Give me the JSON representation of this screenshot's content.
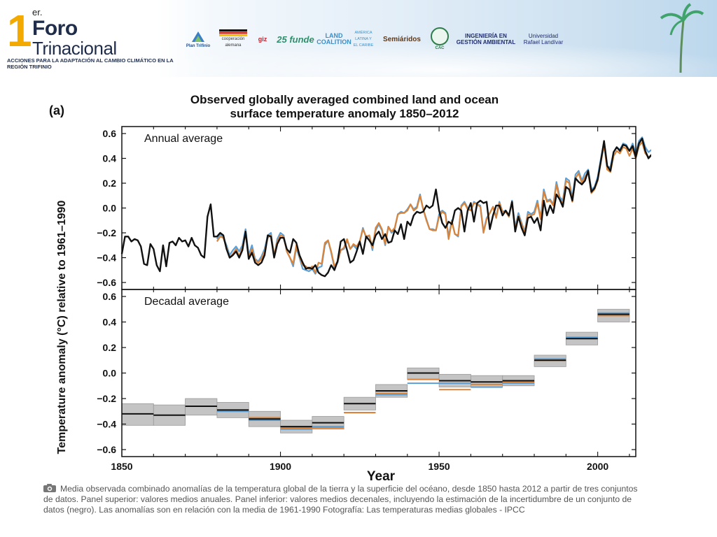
{
  "header": {
    "event_number": "1",
    "event_superscript": "er.",
    "event_line1": "Foro",
    "event_line2": "Trinacional",
    "event_subtitle": "ACCIONES PARA LA ADAPTACIÓN AL CAMBIO CLIMÁTICO EN LA REGIÓN TRIFINIO",
    "partners": [
      {
        "text": "Plan Trifinio",
        "icon": "plan-trifinio-logo"
      },
      {
        "text": "cooperación alemana",
        "icon": "cooperacion-alemana-logo"
      },
      {
        "text": "giz",
        "icon": "giz-logo"
      },
      {
        "text": "25 funde",
        "icon": "funde-logo"
      },
      {
        "text": "LAND COALITION",
        "icon": "land-coalition-logo"
      },
      {
        "text": "AMÉRICA LATINA Y EL CARIBE",
        "icon": "land-coalition-region-logo"
      },
      {
        "text": "Semiáridos",
        "icon": "semiaridos-logo"
      },
      {
        "text": "CAC",
        "icon": "cac-logo"
      },
      {
        "text": "INGENIERÍA EN GESTIÓN AMBIENTAL",
        "icon": "ingenieria-gestion-ambiental-logo"
      },
      {
        "text": "Universidad Rafael Landívar",
        "icon": "universidad-rafael-landivar-logo"
      }
    ]
  },
  "colors": {
    "black_series": "#111111",
    "orange_series": "#d9843a",
    "blue_series": "#5b9fd6",
    "uncertainty_band": "#c4c4c4",
    "event_accent": "#f2a900"
  },
  "chart_data": {
    "type": "line",
    "panel_tag": "(a)",
    "title": "Observed globally averaged combined land and ocean surface temperature anomaly 1850–2012",
    "title_line1": "Observed globally averaged combined land and ocean",
    "title_line2": "surface temperature anomaly 1850–2012",
    "ylabel": "Temperature anomaly (°C) relative to 1961–1990",
    "xlabel": "Year",
    "xlim": [
      1850,
      2012
    ],
    "x_ticks": [
      1850,
      1900,
      1950,
      2000
    ],
    "x_tick_labels": [
      "1850",
      "1900",
      "1950",
      "2000"
    ],
    "grid": false,
    "panels": [
      {
        "label": "Annual average",
        "ylim": [
          -0.6,
          0.6
        ],
        "y_ticks": [
          0.6,
          0.4,
          0.2,
          0.0,
          -0.2,
          -0.4,
          -0.6
        ],
        "y_tick_labels": [
          "0.6",
          "0.4",
          "0.2",
          "0.0",
          "−0.2",
          "−0.4",
          "−0.6"
        ],
        "series": [
          {
            "color": "#111111",
            "x_start": 1850,
            "values": [
              -0.37,
              -0.23,
              -0.23,
              -0.27,
              -0.25,
              -0.26,
              -0.31,
              -0.45,
              -0.46,
              -0.29,
              -0.33,
              -0.46,
              -0.51,
              -0.3,
              -0.47,
              -0.28,
              -0.27,
              -0.3,
              -0.24,
              -0.27,
              -0.26,
              -0.31,
              -0.24,
              -0.3,
              -0.32,
              -0.38,
              -0.4,
              -0.07,
              0.03,
              -0.23,
              -0.23,
              -0.2,
              -0.22,
              -0.33,
              -0.4,
              -0.38,
              -0.35,
              -0.4,
              -0.34,
              -0.19,
              -0.41,
              -0.36,
              -0.44,
              -0.46,
              -0.44,
              -0.38,
              -0.22,
              -0.23,
              -0.4,
              -0.29,
              -0.24,
              -0.24,
              -0.33,
              -0.36,
              -0.25,
              -0.28,
              -0.38,
              -0.44,
              -0.49,
              -0.48,
              -0.49,
              -0.46,
              -0.52,
              -0.54,
              -0.55,
              -0.52,
              -0.46,
              -0.5,
              -0.43,
              -0.27,
              -0.25,
              -0.34,
              -0.44,
              -0.42,
              -0.35,
              -0.27,
              -0.37,
              -0.23,
              -0.26,
              -0.3,
              -0.22,
              -0.19,
              -0.25,
              -0.21,
              -0.28,
              -0.27,
              -0.18,
              -0.21,
              -0.13,
              -0.25,
              -0.11,
              -0.14,
              -0.06,
              -0.03,
              -0.04,
              -0.03,
              0.02,
              0.0,
              0.02,
              0.15,
              -0.02,
              -0.12,
              -0.16,
              -0.11,
              -0.13,
              -0.02,
              0.0,
              -0.02,
              -0.19,
              -0.02,
              0.04,
              -0.11,
              0.04,
              0.06,
              0.04,
              0.05,
              -0.17,
              -0.06,
              0.02,
              0.02,
              -0.06,
              -0.02,
              -0.06,
              0.05,
              -0.19,
              -0.07,
              -0.16,
              -0.22,
              -0.08,
              -0.07,
              -0.12,
              -0.08,
              -0.18,
              0.06,
              -0.06,
              0.02,
              -0.04,
              0.11,
              0.07,
              0.01,
              0.17,
              0.15,
              0.06,
              0.24,
              0.21,
              0.19,
              0.22,
              0.3,
              0.13,
              0.16,
              0.23,
              0.38,
              0.54,
              0.34,
              0.3,
              0.45,
              0.49,
              0.46,
              0.51,
              0.5,
              0.46,
              0.5,
              0.41,
              0.52,
              0.56,
              0.46,
              0.4,
              0.43
            ]
          },
          {
            "color": "#d9843a",
            "x_start": 1880,
            "values": [
              -0.27,
              -0.23,
              -0.24,
              -0.32,
              -0.4,
              -0.37,
              -0.33,
              -0.39,
              -0.32,
              -0.2,
              -0.4,
              -0.33,
              -0.42,
              -0.44,
              -0.41,
              -0.35,
              -0.24,
              -0.22,
              -0.38,
              -0.27,
              -0.22,
              -0.23,
              -0.35,
              -0.4,
              -0.45,
              -0.3,
              -0.39,
              -0.46,
              -0.47,
              -0.49,
              -0.47,
              -0.52,
              -0.44,
              -0.45,
              -0.28,
              -0.26,
              -0.35,
              -0.47,
              -0.43,
              -0.34,
              -0.32,
              -0.25,
              -0.33,
              -0.29,
              -0.31,
              -0.27,
              -0.17,
              -0.23,
              -0.22,
              -0.32,
              -0.16,
              -0.12,
              -0.17,
              -0.29,
              -0.15,
              -0.19,
              -0.16,
              -0.05,
              -0.04,
              -0.04,
              -0.02,
              0.03,
              -0.02,
              0.0,
              0.1,
              -0.01,
              -0.1,
              -0.17,
              -0.18,
              -0.18,
              -0.07,
              -0.03,
              -0.05,
              -0.25,
              -0.11,
              -0.21,
              -0.22,
              0.01,
              0.04,
              -0.01,
              -0.02,
              0.04,
              0.03,
              0.01,
              -0.2,
              -0.09,
              -0.04,
              0.01,
              -0.08,
              0.04,
              -0.03,
              -0.03,
              -0.07,
              0.05,
              -0.17,
              -0.06,
              -0.13,
              -0.2,
              -0.05,
              -0.06,
              -0.05,
              0.04,
              -0.09,
              0.13,
              0.05,
              0.06,
              0.02,
              0.19,
              0.07,
              0.04,
              0.22,
              0.2,
              0.05,
              0.24,
              0.28,
              0.2,
              0.25,
              0.29,
              0.12,
              0.15,
              0.22,
              0.37,
              0.51,
              0.31,
              0.29,
              0.42,
              0.46,
              0.44,
              0.49,
              0.48,
              0.42,
              0.48,
              0.4,
              0.5,
              0.53,
              0.44,
              0.41,
              0.43
            ]
          },
          {
            "color": "#5b9fd6",
            "x_start": 1880,
            "values": [
              -0.25,
              -0.21,
              -0.24,
              -0.3,
              -0.38,
              -0.34,
              -0.31,
              -0.35,
              -0.3,
              -0.17,
              -0.38,
              -0.3,
              -0.41,
              -0.43,
              -0.39,
              -0.33,
              -0.22,
              -0.2,
              -0.39,
              -0.25,
              -0.2,
              -0.22,
              -0.35,
              -0.4,
              -0.47,
              -0.32,
              -0.4,
              -0.49,
              -0.5,
              -0.51,
              -0.49,
              -0.53,
              -0.48,
              -0.47,
              -0.3,
              -0.26,
              -0.36,
              -0.48,
              -0.44,
              -0.34,
              -0.33,
              -0.26,
              -0.33,
              -0.3,
              -0.33,
              -0.27,
              -0.16,
              -0.24,
              -0.22,
              -0.34,
              -0.18,
              -0.13,
              -0.18,
              -0.3,
              -0.15,
              -0.2,
              -0.17,
              -0.05,
              -0.03,
              -0.04,
              -0.01,
              0.03,
              -0.01,
              0.01,
              0.11,
              -0.01,
              -0.09,
              -0.17,
              -0.17,
              -0.18,
              -0.05,
              -0.02,
              -0.04,
              -0.23,
              -0.1,
              -0.21,
              -0.23,
              0.02,
              0.05,
              0.0,
              -0.02,
              0.05,
              0.03,
              0.02,
              -0.19,
              -0.08,
              -0.04,
              0.01,
              -0.07,
              0.05,
              -0.03,
              -0.02,
              -0.07,
              0.06,
              -0.16,
              -0.04,
              -0.12,
              -0.19,
              -0.03,
              -0.05,
              -0.03,
              0.06,
              -0.08,
              0.15,
              0.06,
              0.07,
              0.03,
              0.21,
              0.09,
              0.06,
              0.24,
              0.22,
              0.08,
              0.27,
              0.3,
              0.22,
              0.28,
              0.31,
              0.15,
              0.17,
              0.25,
              0.4,
              0.53,
              0.33,
              0.33,
              0.45,
              0.49,
              0.47,
              0.52,
              0.51,
              0.46,
              0.52,
              0.44,
              0.54,
              0.57,
              0.49,
              0.45,
              0.47
            ]
          }
        ]
      },
      {
        "label": "Decadal average",
        "ylim": [
          -0.6,
          0.6
        ],
        "y_ticks": [
          0.6,
          0.4,
          0.2,
          0.0,
          -0.2,
          -0.4,
          -0.6
        ],
        "y_tick_labels": [
          "0.6",
          "0.4",
          "0.2",
          "0.0",
          "−0.2",
          "−0.4",
          "−0.6"
        ],
        "decades": [
          1850,
          1860,
          1870,
          1880,
          1890,
          1900,
          1910,
          1920,
          1930,
          1940,
          1950,
          1960,
          1970,
          1980,
          1990,
          2000
        ],
        "black_values": [
          -0.32,
          -0.33,
          -0.26,
          -0.29,
          -0.36,
          -0.42,
          -0.39,
          -0.24,
          -0.14,
          0.0,
          -0.06,
          -0.07,
          -0.06,
          0.1,
          0.27,
          0.46
        ],
        "orange_values": [
          null,
          null,
          null,
          -0.29,
          -0.35,
          -0.43,
          -0.43,
          -0.31,
          -0.16,
          -0.05,
          -0.13,
          -0.09,
          -0.07,
          0.1,
          0.27,
          0.45
        ],
        "blue_values": [
          null,
          null,
          null,
          -0.3,
          -0.37,
          -0.44,
          -0.42,
          -0.31,
          -0.17,
          -0.08,
          -0.08,
          -0.11,
          -0.08,
          0.11,
          0.28,
          0.47
        ],
        "uncertainty_low": [
          -0.41,
          -0.41,
          -0.33,
          -0.35,
          -0.42,
          -0.47,
          -0.44,
          -0.29,
          -0.19,
          -0.05,
          -0.11,
          -0.11,
          -0.1,
          0.05,
          0.22,
          0.4
        ],
        "uncertainty_high": [
          -0.24,
          -0.25,
          -0.2,
          -0.23,
          -0.3,
          -0.37,
          -0.34,
          -0.19,
          -0.09,
          0.04,
          -0.01,
          -0.02,
          -0.02,
          0.14,
          0.32,
          0.5
        ]
      }
    ]
  },
  "caption": {
    "icon": "camera-icon",
    "text": "Media observada combinado anomalías de la temperatura global de la tierra y la superficie del océano, desde 1850 hasta 2012 a partir de tres conjuntos de datos. Panel superior: valores medios anuales. Panel inferior: valores medios decenales, incluyendo la estimación de la incertidumbre de un conjunto de datos (negro). Las anomalías son en relación con la media de 1961-1990 Fotografía: Las temperaturas medias globales - IPCC"
  }
}
